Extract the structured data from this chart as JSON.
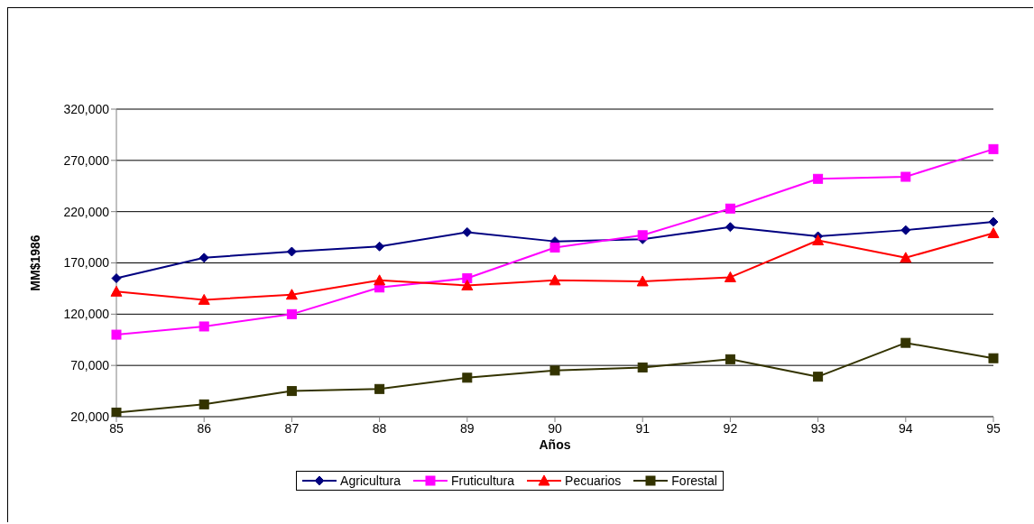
{
  "chart_data": {
    "type": "line",
    "xlabel": "Años",
    "ylabel": "MM$1986",
    "categories": [
      "85",
      "86",
      "87",
      "88",
      "89",
      "90",
      "91",
      "92",
      "93",
      "94",
      "95"
    ],
    "series": [
      {
        "name": "Agricultura",
        "color": "#000080",
        "marker": "diamond",
        "values": [
          155000,
          175000,
          181000,
          186000,
          200000,
          191000,
          193000,
          205000,
          196000,
          202000,
          210000
        ]
      },
      {
        "name": "Fruticultura",
        "color": "#ff00ff",
        "marker": "square",
        "values": [
          100000,
          108000,
          120000,
          146000,
          155000,
          185000,
          197000,
          223000,
          252000,
          254000,
          281000
        ]
      },
      {
        "name": "Pecuarios",
        "color": "#ff0000",
        "marker": "triangle",
        "values": [
          142000,
          134000,
          139000,
          153000,
          148000,
          153000,
          152000,
          156000,
          192000,
          175000,
          199000
        ]
      },
      {
        "name": "Forestal",
        "color": "#333300",
        "marker": "square",
        "values": [
          24000,
          32000,
          45000,
          47000,
          58000,
          65000,
          68000,
          76000,
          59000,
          92000,
          77000
        ]
      }
    ],
    "ylim": [
      20000,
      320000
    ],
    "yticks": [
      {
        "value": 20000,
        "label": "20,000"
      },
      {
        "value": 70000,
        "label": "70,000"
      },
      {
        "value": 120000,
        "label": "120,000"
      },
      {
        "value": 170000,
        "label": "170,000"
      },
      {
        "value": 220000,
        "label": "220,000"
      },
      {
        "value": 270000,
        "label": "270,000"
      },
      {
        "value": 320000,
        "label": "320,000"
      }
    ],
    "grid": "y",
    "legend": "bottom"
  }
}
